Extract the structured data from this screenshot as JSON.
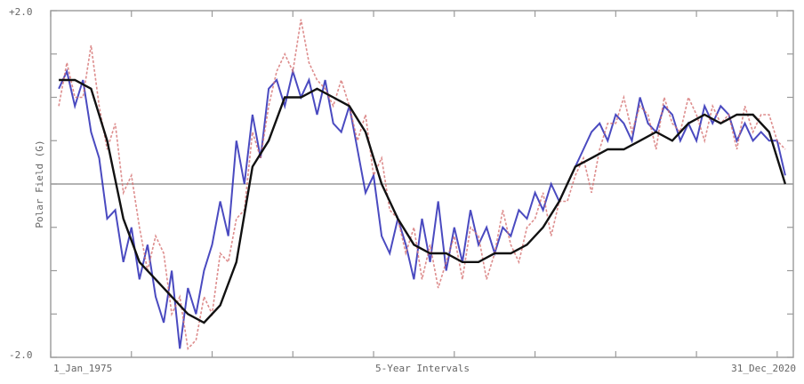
{
  "chart_data": {
    "type": "line",
    "ylabel": "Polar Field (G)",
    "xlabel": "5-Year Intervals",
    "ylim": [
      -2.0,
      2.0
    ],
    "y_tick_labels": [
      {
        "value": 2.0,
        "label": "+2.0"
      },
      {
        "value": -2.0,
        "label": "-2.0"
      }
    ],
    "x_range": [
      1975.0,
      2021.0
    ],
    "x_tick_labels": [
      {
        "value": 1975.0,
        "label": "1_Jan_1975"
      },
      {
        "value": 2021.0,
        "label": "31_Dec_2020"
      }
    ],
    "x_tick_interval_years": 5,
    "zero_line": true,
    "series": [
      {
        "key": "north",
        "color": "#2a2ab5",
        "style": "solid",
        "x": [
          1975.5,
          1976,
          1976.5,
          1977,
          1977.5,
          1978,
          1978.5,
          1979,
          1979.5,
          1980,
          1980.5,
          1981,
          1981.5,
          1982,
          1982.5,
          1983,
          1983.5,
          1984,
          1984.5,
          1985,
          1985.5,
          1986,
          1986.5,
          1987,
          1987.5,
          1988,
          1988.5,
          1989,
          1989.5,
          1990,
          1990.5,
          1991,
          1991.5,
          1992,
          1992.5,
          1993,
          1993.5,
          1994,
          1994.5,
          1995,
          1995.5,
          1996,
          1996.5,
          1997,
          1997.5,
          1998,
          1998.5,
          1999,
          1999.5,
          2000,
          2000.5,
          2001,
          2001.5,
          2002,
          2002.5,
          2003,
          2003.5,
          2004,
          2004.5,
          2005,
          2005.5,
          2006,
          2006.5,
          2007,
          2007.5,
          2008,
          2008.5,
          2009,
          2009.5,
          2010,
          2010.5,
          2011,
          2011.5,
          2012,
          2012.5,
          2013,
          2013.5,
          2014,
          2014.5,
          2015,
          2015.5,
          2016,
          2016.5,
          2017,
          2017.5,
          2018,
          2018.5,
          2019,
          2019.5,
          2020,
          2020.5
        ],
        "values": [
          1.1,
          1.3,
          0.9,
          1.2,
          0.6,
          0.3,
          -0.4,
          -0.3,
          -0.9,
          -0.5,
          -1.1,
          -0.7,
          -1.3,
          -1.6,
          -1.0,
          -1.9,
          -1.2,
          -1.5,
          -1.0,
          -0.7,
          -0.2,
          -0.6,
          0.5,
          0.0,
          0.8,
          0.3,
          1.1,
          1.2,
          0.9,
          1.3,
          1.0,
          1.2,
          0.8,
          1.2,
          0.7,
          0.6,
          0.9,
          0.4,
          -0.1,
          0.1,
          -0.6,
          -0.8,
          -0.4,
          -0.7,
          -1.1,
          -0.4,
          -0.9,
          -0.2,
          -1.0,
          -0.5,
          -0.9,
          -0.3,
          -0.7,
          -0.5,
          -0.8,
          -0.5,
          -0.6,
          -0.3,
          -0.4,
          -0.1,
          -0.3,
          0.0,
          -0.2,
          0.0,
          0.2,
          0.4,
          0.6,
          0.7,
          0.5,
          0.8,
          0.7,
          0.5,
          1.0,
          0.7,
          0.6,
          0.9,
          0.8,
          0.5,
          0.7,
          0.5,
          0.9,
          0.7,
          0.9,
          0.8,
          0.5,
          0.7,
          0.5,
          0.6,
          0.5,
          0.5,
          0.1
        ]
      },
      {
        "key": "south",
        "color": "#d47070",
        "style": "dashed",
        "x": [
          1975.5,
          1976,
          1976.5,
          1977,
          1977.5,
          1978,
          1978.5,
          1979,
          1979.5,
          1980,
          1980.5,
          1981,
          1981.5,
          1982,
          1982.5,
          1983,
          1983.5,
          1984,
          1984.5,
          1985,
          1985.5,
          1986,
          1986.5,
          1987,
          1987.5,
          1988,
          1988.5,
          1989,
          1989.5,
          1990,
          1990.5,
          1991,
          1991.5,
          1992,
          1992.5,
          1993,
          1993.5,
          1994,
          1994.5,
          1995,
          1995.5,
          1996,
          1996.5,
          1997,
          1997.5,
          1998,
          1998.5,
          1999,
          1999.5,
          2000,
          2000.5,
          2001,
          2001.5,
          2002,
          2002.5,
          2003,
          2003.5,
          2004,
          2004.5,
          2005,
          2005.5,
          2006,
          2006.5,
          2007,
          2007.5,
          2008,
          2008.5,
          2009,
          2009.5,
          2010,
          2010.5,
          2011,
          2011.5,
          2012,
          2012.5,
          2013,
          2013.5,
          2014,
          2014.5,
          2015,
          2015.5,
          2016,
          2016.5,
          2017,
          2017.5,
          2018,
          2018.5,
          2019,
          2019.5,
          2020,
          2020.5
        ],
        "values": [
          0.9,
          1.4,
          1.0,
          1.0,
          1.6,
          0.9,
          0.4,
          0.7,
          -0.1,
          0.1,
          -0.5,
          -1.0,
          -0.6,
          -0.8,
          -1.5,
          -1.3,
          -1.9,
          -1.8,
          -1.3,
          -1.5,
          -0.8,
          -0.9,
          -0.4,
          -0.3,
          0.6,
          0.3,
          0.9,
          1.3,
          1.5,
          1.3,
          1.9,
          1.4,
          1.2,
          1.1,
          0.9,
          1.2,
          0.9,
          0.5,
          0.8,
          0.1,
          0.3,
          -0.3,
          -0.4,
          -0.8,
          -0.5,
          -1.1,
          -0.7,
          -1.2,
          -0.9,
          -0.6,
          -1.1,
          -0.5,
          -0.6,
          -1.1,
          -0.8,
          -0.3,
          -0.7,
          -0.9,
          -0.5,
          -0.4,
          -0.1,
          -0.6,
          -0.2,
          -0.2,
          0.1,
          0.3,
          -0.1,
          0.4,
          0.7,
          0.7,
          1.0,
          0.6,
          0.9,
          0.8,
          0.4,
          1.0,
          0.7,
          0.6,
          1.0,
          0.8,
          0.5,
          0.9,
          0.7,
          0.8,
          0.4,
          0.9,
          0.6,
          0.8,
          0.8,
          0.5,
          0.4
        ]
      },
      {
        "key": "average",
        "color": "#111111",
        "style": "solid",
        "x": [
          1975.5,
          1976.5,
          1977.5,
          1978.5,
          1979.5,
          1980.5,
          1981.5,
          1982.5,
          1983.5,
          1984.5,
          1985.5,
          1986.5,
          1987.5,
          1988.5,
          1989.5,
          1990.5,
          1991.5,
          1992.5,
          1993.5,
          1994.5,
          1995.5,
          1996.5,
          1997.5,
          1998.5,
          1999.5,
          2000.5,
          2001.5,
          2002.5,
          2003.5,
          2004.5,
          2005.5,
          2006.5,
          2007.5,
          2008.5,
          2009.5,
          2010.5,
          2011.5,
          2012.5,
          2013.5,
          2014.5,
          2015.5,
          2016.5,
          2017.5,
          2018.5,
          2019.5,
          2020.5
        ],
        "values": [
          1.2,
          1.2,
          1.1,
          0.5,
          -0.4,
          -0.9,
          -1.1,
          -1.3,
          -1.5,
          -1.6,
          -1.4,
          -0.9,
          0.2,
          0.5,
          1.0,
          1.0,
          1.1,
          1.0,
          0.9,
          0.6,
          0.0,
          -0.4,
          -0.7,
          -0.8,
          -0.8,
          -0.9,
          -0.9,
          -0.8,
          -0.8,
          -0.7,
          -0.5,
          -0.2,
          0.2,
          0.3,
          0.4,
          0.4,
          0.5,
          0.6,
          0.5,
          0.7,
          0.8,
          0.7,
          0.8,
          0.8,
          0.6,
          0.0
        ]
      }
    ]
  }
}
